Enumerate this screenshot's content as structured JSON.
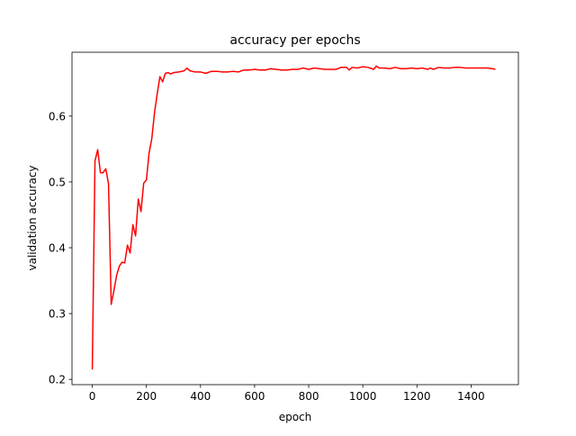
{
  "chart_data": {
    "type": "line",
    "title": "accuracy per epochs",
    "xlabel": "epoch",
    "ylabel": "validation accuracy",
    "xlim": [
      -75,
      1575
    ],
    "ylim": [
      0.192,
      0.697
    ],
    "xticks": [
      0,
      200,
      400,
      600,
      800,
      1000,
      1200,
      1400
    ],
    "xtick_labels": [
      "0",
      "200",
      "400",
      "600",
      "800",
      "1000",
      "1200",
      "1400"
    ],
    "yticks": [
      0.2,
      0.3,
      0.4,
      0.5,
      0.6
    ],
    "ytick_labels": [
      "0.2",
      "0.3",
      "0.4",
      "0.5",
      "0.6"
    ],
    "grid": false,
    "series": [
      {
        "color": "#ff0000",
        "x": [
          0,
          10,
          20,
          30,
          40,
          50,
          60,
          70,
          80,
          90,
          100,
          110,
          120,
          130,
          140,
          150,
          160,
          170,
          180,
          190,
          200,
          210,
          220,
          230,
          240,
          250,
          260,
          270,
          280,
          290,
          300,
          320,
          340,
          350,
          360,
          380,
          400,
          420,
          440,
          460,
          480,
          500,
          520,
          540,
          560,
          580,
          600,
          620,
          640,
          660,
          680,
          700,
          720,
          740,
          760,
          780,
          800,
          820,
          840,
          860,
          880,
          900,
          920,
          940,
          950,
          960,
          980,
          1000,
          1020,
          1040,
          1050,
          1060,
          1080,
          1100,
          1120,
          1140,
          1160,
          1180,
          1200,
          1220,
          1240,
          1250,
          1260,
          1280,
          1300,
          1320,
          1340,
          1360,
          1380,
          1400,
          1420,
          1440,
          1460,
          1480,
          1490
        ],
        "y": [
          0.215,
          0.532,
          0.549,
          0.514,
          0.514,
          0.52,
          0.497,
          0.314,
          0.335,
          0.358,
          0.372,
          0.378,
          0.377,
          0.404,
          0.392,
          0.435,
          0.418,
          0.474,
          0.455,
          0.498,
          0.503,
          0.544,
          0.566,
          0.605,
          0.634,
          0.66,
          0.652,
          0.665,
          0.666,
          0.664,
          0.666,
          0.667,
          0.669,
          0.673,
          0.669,
          0.667,
          0.667,
          0.665,
          0.668,
          0.668,
          0.667,
          0.667,
          0.668,
          0.667,
          0.67,
          0.67,
          0.671,
          0.67,
          0.67,
          0.672,
          0.671,
          0.67,
          0.67,
          0.671,
          0.671,
          0.673,
          0.671,
          0.673,
          0.672,
          0.671,
          0.671,
          0.671,
          0.674,
          0.674,
          0.67,
          0.674,
          0.673,
          0.675,
          0.674,
          0.671,
          0.676,
          0.673,
          0.673,
          0.672,
          0.674,
          0.672,
          0.672,
          0.673,
          0.672,
          0.673,
          0.671,
          0.673,
          0.671,
          0.674,
          0.673,
          0.673,
          0.674,
          0.674,
          0.673,
          0.673,
          0.673,
          0.673,
          0.673,
          0.672,
          0.671
        ]
      }
    ]
  }
}
